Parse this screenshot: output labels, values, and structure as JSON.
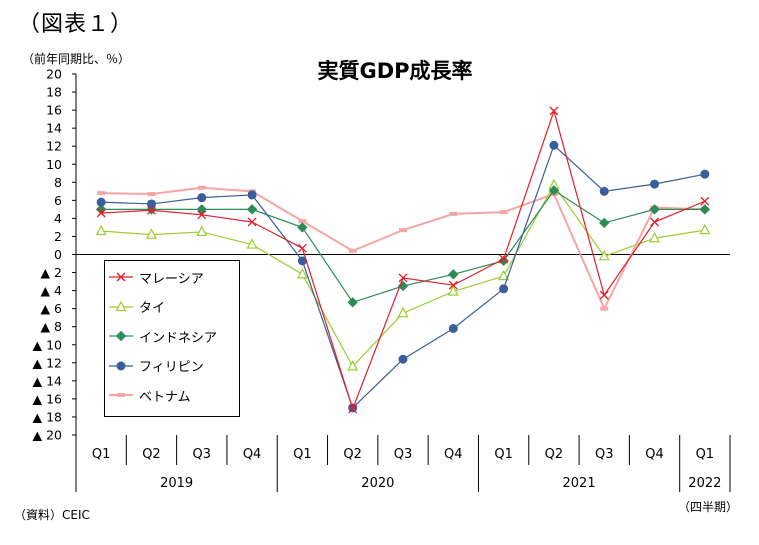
{
  "figure_label": "（図表１）",
  "unit_label": "（前年同期比、％）",
  "source_label": "（資料）CEIC",
  "period_label": "（四半期）",
  "chart_data": {
    "type": "line",
    "title": "実質GDP成長率",
    "xlabel": "",
    "ylabel": "",
    "ylim": [
      -20,
      20
    ],
    "y_ticks": [
      "20",
      "18",
      "16",
      "14",
      "12",
      "10",
      "8",
      "6",
      "4",
      "2",
      "0",
      "▲ 2",
      "▲ 4",
      "▲ 6",
      "▲ 8",
      "▲ 10",
      "▲ 12",
      "▲ 14",
      "▲ 16",
      "▲ 18",
      "▲ 20"
    ],
    "categories": [
      "Q1",
      "Q2",
      "Q3",
      "Q4",
      "Q1",
      "Q2",
      "Q3",
      "Q4",
      "Q1",
      "Q2",
      "Q3",
      "Q4",
      "Q1"
    ],
    "year_groups": [
      {
        "label": "2019",
        "count": 4
      },
      {
        "label": "2020",
        "count": 4
      },
      {
        "label": "2021",
        "count": 4
      },
      {
        "label": "2022",
        "count": 1
      }
    ],
    "legend_position": "left-center",
    "grid": false,
    "series": [
      {
        "name": "マレーシア",
        "color": "#e0202a",
        "marker": "x",
        "values": [
          4.6,
          4.9,
          4.4,
          3.6,
          0.7,
          -17.1,
          -2.6,
          -3.4,
          -0.5,
          15.9,
          -4.5,
          3.6,
          5.9
        ]
      },
      {
        "name": "タイ",
        "color": "#9acd32",
        "marker": "triangle",
        "values": [
          2.6,
          2.2,
          2.5,
          1.1,
          -2.2,
          -12.4,
          -6.5,
          -4.1,
          -2.4,
          7.7,
          -0.2,
          1.8,
          2.7
        ]
      },
      {
        "name": "インドネシア",
        "color": "#2e8b57",
        "marker": "diamond",
        "values": [
          5.0,
          5.0,
          5.0,
          5.0,
          3.0,
          -5.3,
          -3.5,
          -2.2,
          -0.7,
          7.1,
          3.5,
          5.0,
          5.0
        ]
      },
      {
        "name": "フィリピン",
        "color": "#3a5d9c",
        "marker": "circle",
        "values": [
          5.8,
          5.6,
          6.3,
          6.6,
          -0.7,
          -17.0,
          -11.6,
          -8.2,
          -3.8,
          12.1,
          7.0,
          7.8,
          8.9
        ]
      },
      {
        "name": "ベトナム",
        "color": "#f4a6a6",
        "marker": "square",
        "values": [
          6.8,
          6.7,
          7.4,
          7.0,
          3.7,
          0.4,
          2.7,
          4.5,
          4.7,
          6.7,
          -6.0,
          5.2,
          5.0
        ]
      }
    ]
  }
}
